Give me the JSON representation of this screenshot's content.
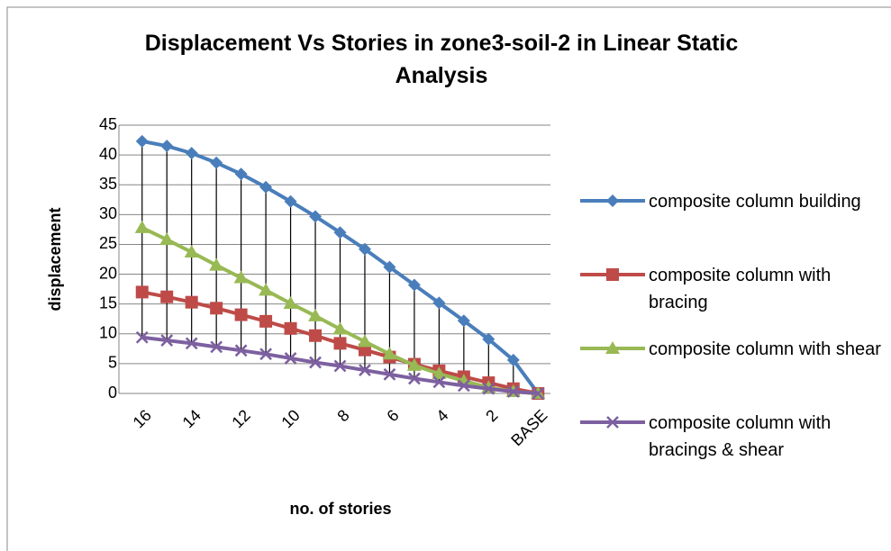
{
  "chart_data": {
    "type": "line",
    "title": "Displacement Vs Stories in zone3-soil-2 in Linear Static Analysis",
    "x_label": "no. of stories",
    "y_label": "displacement",
    "categories": [
      "16",
      null,
      "14",
      null,
      "12",
      null,
      "10",
      null,
      "8",
      null,
      "6",
      null,
      "4",
      null,
      "2",
      null,
      "BASE"
    ],
    "series": [
      {
        "name": "composite column building",
        "color": "#4a7ebb",
        "marker": "diamond",
        "values": [
          42.3,
          41.5,
          40.3,
          38.7,
          36.8,
          34.6,
          32.2,
          29.7,
          27.0,
          24.2,
          21.2,
          18.2,
          15.2,
          12.2,
          9.1,
          5.6,
          0
        ]
      },
      {
        "name": "composite column with bracing",
        "color": "#be4b48",
        "marker": "square",
        "values": [
          17,
          16.2,
          15.3,
          14.3,
          13.2,
          12.1,
          10.9,
          9.7,
          8.4,
          7.3,
          6.1,
          4.9,
          3.8,
          2.8,
          1.8,
          0.8,
          0
        ]
      },
      {
        "name": "composite column with shear",
        "color": "#98b954",
        "marker": "triangle",
        "values": [
          27.8,
          25.8,
          23.7,
          21.5,
          19.4,
          17.3,
          15.1,
          13.0,
          10.8,
          8.7,
          6.6,
          4.7,
          3.3,
          2.1,
          1.0,
          0.3,
          0
        ]
      },
      {
        "name": "composite column with bracings & shear",
        "color": "#7d60a0",
        "marker": "x",
        "values": [
          9.4,
          8.9,
          8.4,
          7.8,
          7.2,
          6.6,
          5.9,
          5.2,
          4.6,
          3.9,
          3.2,
          2.5,
          1.9,
          1.3,
          0.8,
          0.3,
          0
        ]
      }
    ],
    "ylim": [
      0,
      45
    ],
    "yticks": [
      0,
      5,
      10,
      15,
      20,
      25,
      30,
      35,
      40,
      45
    ],
    "grid": true,
    "legend": "right"
  }
}
